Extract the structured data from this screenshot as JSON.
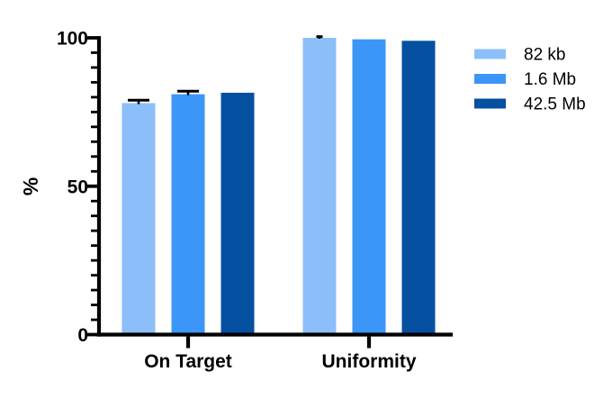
{
  "chart_data": {
    "type": "bar",
    "title": "",
    "xlabel": "",
    "ylabel": "%",
    "categories": [
      "On Target",
      "Uniformity"
    ],
    "series": [
      {
        "name": "82 kb",
        "color": "#8CBFF9",
        "values": [
          78.0,
          100.0
        ],
        "errors": [
          1.0,
          0.4
        ]
      },
      {
        "name": "1.6 Mb",
        "color": "#3C96F8",
        "values": [
          81.0,
          99.5
        ],
        "errors": [
          1.0,
          0.0
        ]
      },
      {
        "name": "42.5 Mb",
        "color": "#0550A0",
        "values": [
          81.5,
          99.0
        ],
        "errors": [
          0.0,
          0.0
        ]
      }
    ],
    "ylim": [
      0,
      100
    ],
    "yticks_major": [
      0,
      50,
      100
    ],
    "ytick_minor_step": 5,
    "grid": false,
    "error_bars": true,
    "error_bar_color": "#000000",
    "axis_color": "#000000",
    "legend_position": "right",
    "legend_items": [
      "82 kb",
      "1.6 Mb",
      "42.5 Mb"
    ],
    "background_color": "#ffffff"
  }
}
